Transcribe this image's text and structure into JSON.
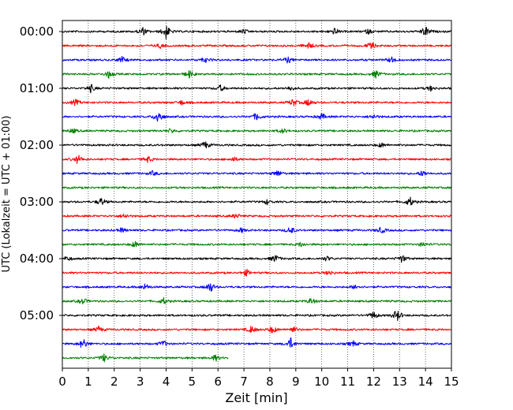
{
  "chart_data": {
    "type": "line",
    "title": "",
    "xlabel": "Zeit  [min]",
    "ylabel": "UTC (Lokalzeit = UTC + 01:00)",
    "xlim": [
      0,
      15
    ],
    "x_ticks": [
      0,
      1,
      2,
      3,
      4,
      5,
      6,
      7,
      8,
      9,
      10,
      11,
      12,
      13,
      14,
      15
    ],
    "grid": "vertical dotted",
    "y_tick_labels": [
      "00:00",
      "01:00",
      "02:00",
      "03:00",
      "04:00",
      "05:00"
    ],
    "row_minutes": 15,
    "rows": 24,
    "last_row_end_min": 6.4,
    "colors": [
      "#000000",
      "#ff0000",
      "#0000ff",
      "#008000"
    ],
    "events": [
      {
        "row": 0,
        "x": 3.1,
        "amp": 5
      },
      {
        "row": 0,
        "x": 4.0,
        "amp": 9
      },
      {
        "row": 0,
        "x": 7.0,
        "amp": 3
      },
      {
        "row": 0,
        "x": 10.5,
        "amp": 4
      },
      {
        "row": 0,
        "x": 11.8,
        "amp": 3
      },
      {
        "row": 0,
        "x": 14.0,
        "amp": 7
      },
      {
        "row": 1,
        "x": 3.8,
        "amp": 3
      },
      {
        "row": 1,
        "x": 9.5,
        "amp": 4
      },
      {
        "row": 1,
        "x": 11.9,
        "amp": 5
      },
      {
        "row": 2,
        "x": 2.3,
        "amp": 4
      },
      {
        "row": 2,
        "x": 5.5,
        "amp": 3
      },
      {
        "row": 2,
        "x": 8.7,
        "amp": 4
      },
      {
        "row": 2,
        "x": 12.7,
        "amp": 4
      },
      {
        "row": 3,
        "x": 1.8,
        "amp": 5
      },
      {
        "row": 3,
        "x": 4.9,
        "amp": 5
      },
      {
        "row": 3,
        "x": 12.1,
        "amp": 5
      },
      {
        "row": 4,
        "x": 1.1,
        "amp": 5
      },
      {
        "row": 4,
        "x": 6.1,
        "amp": 4
      },
      {
        "row": 4,
        "x": 8.8,
        "amp": 3
      },
      {
        "row": 4,
        "x": 14.2,
        "amp": 3
      },
      {
        "row": 5,
        "x": 0.5,
        "amp": 4
      },
      {
        "row": 5,
        "x": 4.6,
        "amp": 3
      },
      {
        "row": 5,
        "x": 8.9,
        "amp": 5
      },
      {
        "row": 5,
        "x": 9.5,
        "amp": 5
      },
      {
        "row": 6,
        "x": 3.7,
        "amp": 9
      },
      {
        "row": 6,
        "x": 7.5,
        "amp": 5
      },
      {
        "row": 6,
        "x": 10.0,
        "amp": 4
      },
      {
        "row": 6,
        "x": 12.0,
        "amp": 3
      },
      {
        "row": 7,
        "x": 0.4,
        "amp": 3
      },
      {
        "row": 7,
        "x": 4.2,
        "amp": 3
      },
      {
        "row": 7,
        "x": 8.5,
        "amp": 3
      },
      {
        "row": 8,
        "x": 5.5,
        "amp": 5
      },
      {
        "row": 8,
        "x": 12.3,
        "amp": 3
      },
      {
        "row": 9,
        "x": 0.6,
        "amp": 6
      },
      {
        "row": 9,
        "x": 3.3,
        "amp": 4
      },
      {
        "row": 9,
        "x": 6.6,
        "amp": 3
      },
      {
        "row": 10,
        "x": 3.5,
        "amp": 3
      },
      {
        "row": 10,
        "x": 8.3,
        "amp": 4
      },
      {
        "row": 10,
        "x": 13.9,
        "amp": 4
      },
      {
        "row": 12,
        "x": 1.5,
        "amp": 5
      },
      {
        "row": 12,
        "x": 7.9,
        "amp": 3
      },
      {
        "row": 12,
        "x": 13.4,
        "amp": 6
      },
      {
        "row": 13,
        "x": 2.4,
        "amp": 3
      },
      {
        "row": 13,
        "x": 6.7,
        "amp": 3
      },
      {
        "row": 14,
        "x": 2.3,
        "amp": 3
      },
      {
        "row": 14,
        "x": 6.9,
        "amp": 3
      },
      {
        "row": 14,
        "x": 8.8,
        "amp": 5
      },
      {
        "row": 14,
        "x": 12.3,
        "amp": 4
      },
      {
        "row": 15,
        "x": 2.8,
        "amp": 4
      },
      {
        "row": 15,
        "x": 9.2,
        "amp": 3
      },
      {
        "row": 15,
        "x": 13.9,
        "amp": 3
      },
      {
        "row": 16,
        "x": 0.2,
        "amp": 3
      },
      {
        "row": 16,
        "x": 8.2,
        "amp": 5
      },
      {
        "row": 16,
        "x": 10.2,
        "amp": 3
      },
      {
        "row": 16,
        "x": 13.1,
        "amp": 5
      },
      {
        "row": 17,
        "x": 7.1,
        "amp": 4
      },
      {
        "row": 17,
        "x": 10.3,
        "amp": 3
      },
      {
        "row": 18,
        "x": 3.2,
        "amp": 4
      },
      {
        "row": 18,
        "x": 5.7,
        "amp": 7
      },
      {
        "row": 18,
        "x": 11.3,
        "amp": 3
      },
      {
        "row": 19,
        "x": 0.8,
        "amp": 4
      },
      {
        "row": 19,
        "x": 3.9,
        "amp": 4
      },
      {
        "row": 19,
        "x": 9.6,
        "amp": 4
      },
      {
        "row": 20,
        "x": 12.0,
        "amp": 5
      },
      {
        "row": 20,
        "x": 12.9,
        "amp": 8
      },
      {
        "row": 21,
        "x": 1.4,
        "amp": 4
      },
      {
        "row": 21,
        "x": 7.3,
        "amp": 5
      },
      {
        "row": 21,
        "x": 8.1,
        "amp": 5
      },
      {
        "row": 21,
        "x": 8.9,
        "amp": 4
      },
      {
        "row": 22,
        "x": 0.8,
        "amp": 7
      },
      {
        "row": 22,
        "x": 3.9,
        "amp": 4
      },
      {
        "row": 22,
        "x": 8.8,
        "amp": 7
      },
      {
        "row": 22,
        "x": 11.2,
        "amp": 4
      },
      {
        "row": 23,
        "x": 1.6,
        "amp": 5
      },
      {
        "row": 23,
        "x": 5.9,
        "amp": 4
      }
    ]
  }
}
